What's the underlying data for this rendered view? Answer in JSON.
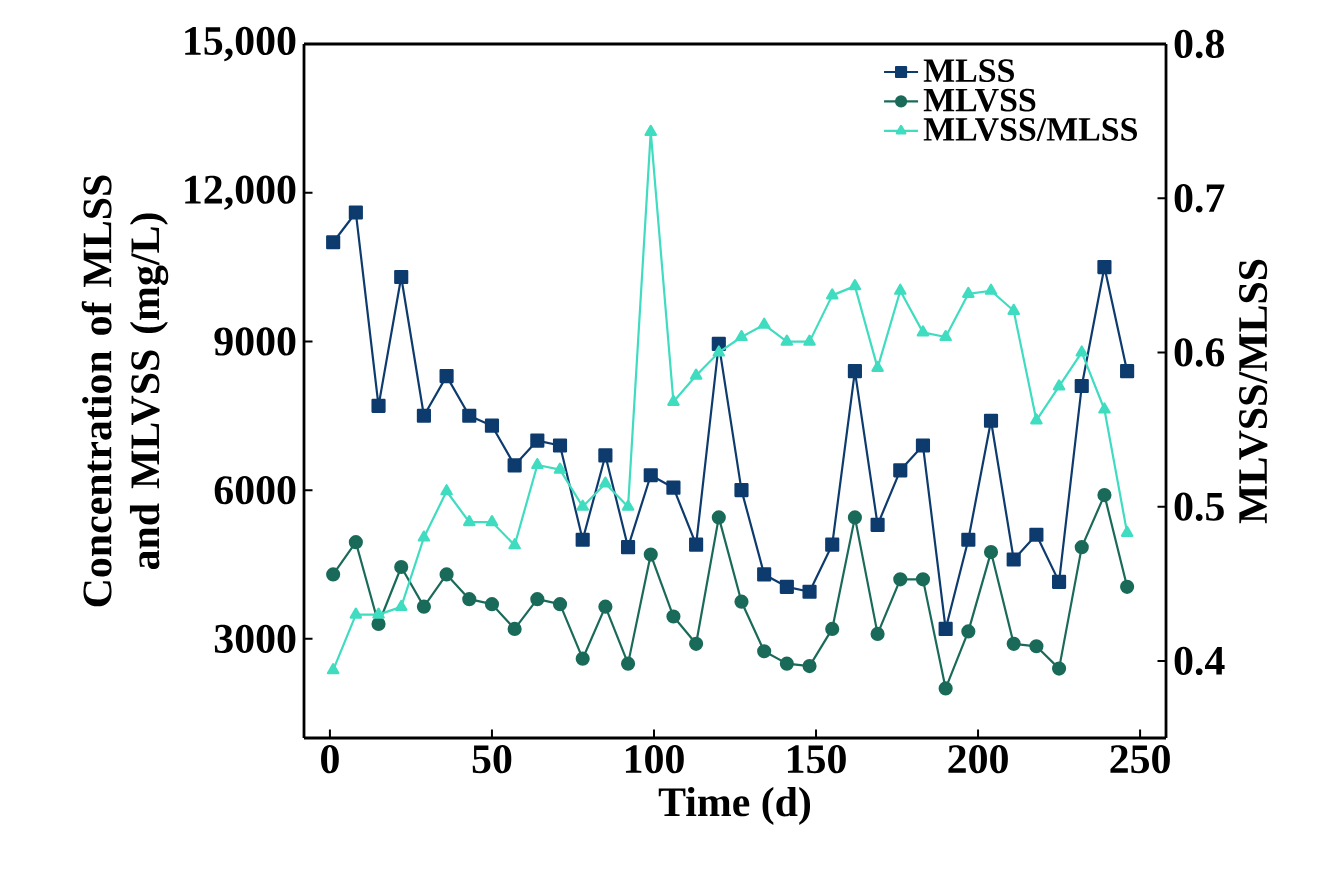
{
  "chart_data": {
    "type": "line",
    "xlabel": "Time (d)",
    "ylabel": "Concentration of MLSS and MLVSS (mg/L)",
    "y2label": "MLVSS/MLSS",
    "x": [
      1,
      8,
      15,
      22,
      29,
      36,
      43,
      50,
      57,
      64,
      71,
      78,
      85,
      92,
      99,
      106,
      113,
      120,
      127,
      134,
      141,
      148,
      155,
      162,
      169,
      176,
      183,
      190,
      197,
      204,
      211,
      218,
      225,
      232,
      239,
      246
    ],
    "xlim": [
      -8,
      258
    ],
    "xticks": [
      0,
      50,
      100,
      150,
      200,
      250
    ],
    "ylim": [
      1000,
      15000
    ],
    "yticks": [
      {
        "value": 3000,
        "label": "3000"
      },
      {
        "value": 6000,
        "label": "6000"
      },
      {
        "value": 9000,
        "label": "9000"
      },
      {
        "value": 12000,
        "label": "12,000"
      },
      {
        "value": 15000,
        "label": "15,000"
      }
    ],
    "y2lim": [
      0.35,
      0.8
    ],
    "y2ticks": [
      0.4,
      0.5,
      0.6,
      0.7,
      0.8
    ],
    "legend": "top right",
    "grid": false,
    "line_style": "solid",
    "series": [
      {
        "name": "MLSS",
        "color": "#0d3b6e",
        "marker": "square",
        "values": [
          11000,
          11600,
          7700,
          10300,
          7500,
          8300,
          7500,
          7300,
          6500,
          7000,
          6900,
          5000,
          6700,
          4850,
          6300,
          6050,
          4900,
          8950,
          6000,
          4300,
          4050,
          3950,
          4900,
          8400,
          5300,
          6400,
          6900,
          3200,
          5000,
          7400,
          4600,
          5100,
          4150,
          8100,
          10500,
          8400
        ]
      },
      {
        "name": "MLVSS",
        "color": "#1a6a5a",
        "marker": "circle",
        "values": [
          4300,
          4950,
          3300,
          4450,
          3650,
          4300,
          3800,
          3700,
          3200,
          3800,
          3700,
          2600,
          3650,
          2500,
          4700,
          3450,
          2900,
          5450,
          3750,
          2750,
          2500,
          2450,
          3200,
          5450,
          3100,
          4200,
          4200,
          2000,
          3150,
          4750,
          2900,
          2850,
          2400,
          4850,
          5900,
          4050
        ]
      },
      {
        "name": "MLVSS/MLSS",
        "color": "#3fdcc0",
        "marker": "triangle",
        "axis": "y2",
        "values": [
          0.394,
          0.43,
          0.43,
          0.435,
          0.48,
          0.51,
          0.49,
          0.49,
          0.475,
          0.527,
          0.524,
          0.5,
          0.515,
          0.5,
          0.743,
          0.568,
          0.585,
          0.6,
          0.61,
          0.618,
          0.607,
          0.607,
          0.637,
          0.643,
          0.59,
          0.64,
          0.613,
          0.61,
          0.638,
          0.64,
          0.627,
          0.556,
          0.578,
          0.6,
          0.563,
          0.483
        ]
      }
    ]
  }
}
